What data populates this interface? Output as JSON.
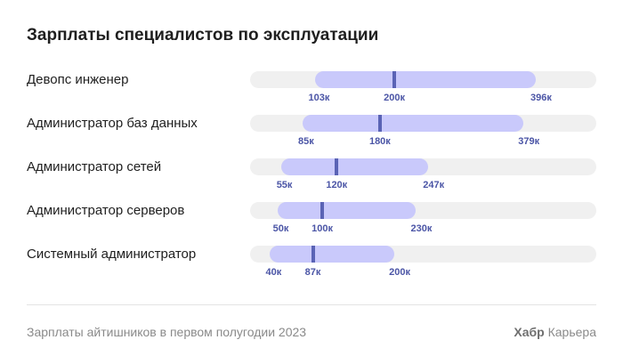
{
  "chart_data": {
    "type": "bar",
    "title": "Зарплаты специалистов по эксплуатации",
    "scale_max": 480,
    "rows": [
      {
        "label": "Девопс инженер",
        "min": 103,
        "median": 200,
        "max": 396,
        "min_label": "103к",
        "median_label": "200к",
        "max_label": "396к"
      },
      {
        "label": "Администратор баз данных",
        "min": 85,
        "median": 180,
        "max": 379,
        "min_label": "85к",
        "median_label": "180к",
        "max_label": "379к"
      },
      {
        "label": "Администратор сетей",
        "min": 55,
        "median": 120,
        "max": 247,
        "min_label": "55к",
        "median_label": "120к",
        "max_label": "247к"
      },
      {
        "label": "Администратор серверов",
        "min": 50,
        "median": 100,
        "max": 230,
        "min_label": "50к",
        "median_label": "100к",
        "max_label": "230к"
      },
      {
        "label": "Системный администратор",
        "min": 40,
        "median": 87,
        "max": 200,
        "min_label": "40к",
        "median_label": "87к",
        "max_label": "200к"
      }
    ],
    "colors": {
      "track": "#f0f0f0",
      "range": "#c9c9fb",
      "median": "#5a63b5",
      "tick_text": "#4b55a6"
    }
  },
  "footer": {
    "caption": "Зарплаты айтишников в первом полугодии 2023",
    "brand": "Хабр",
    "brand_suffix": "Карьера"
  }
}
